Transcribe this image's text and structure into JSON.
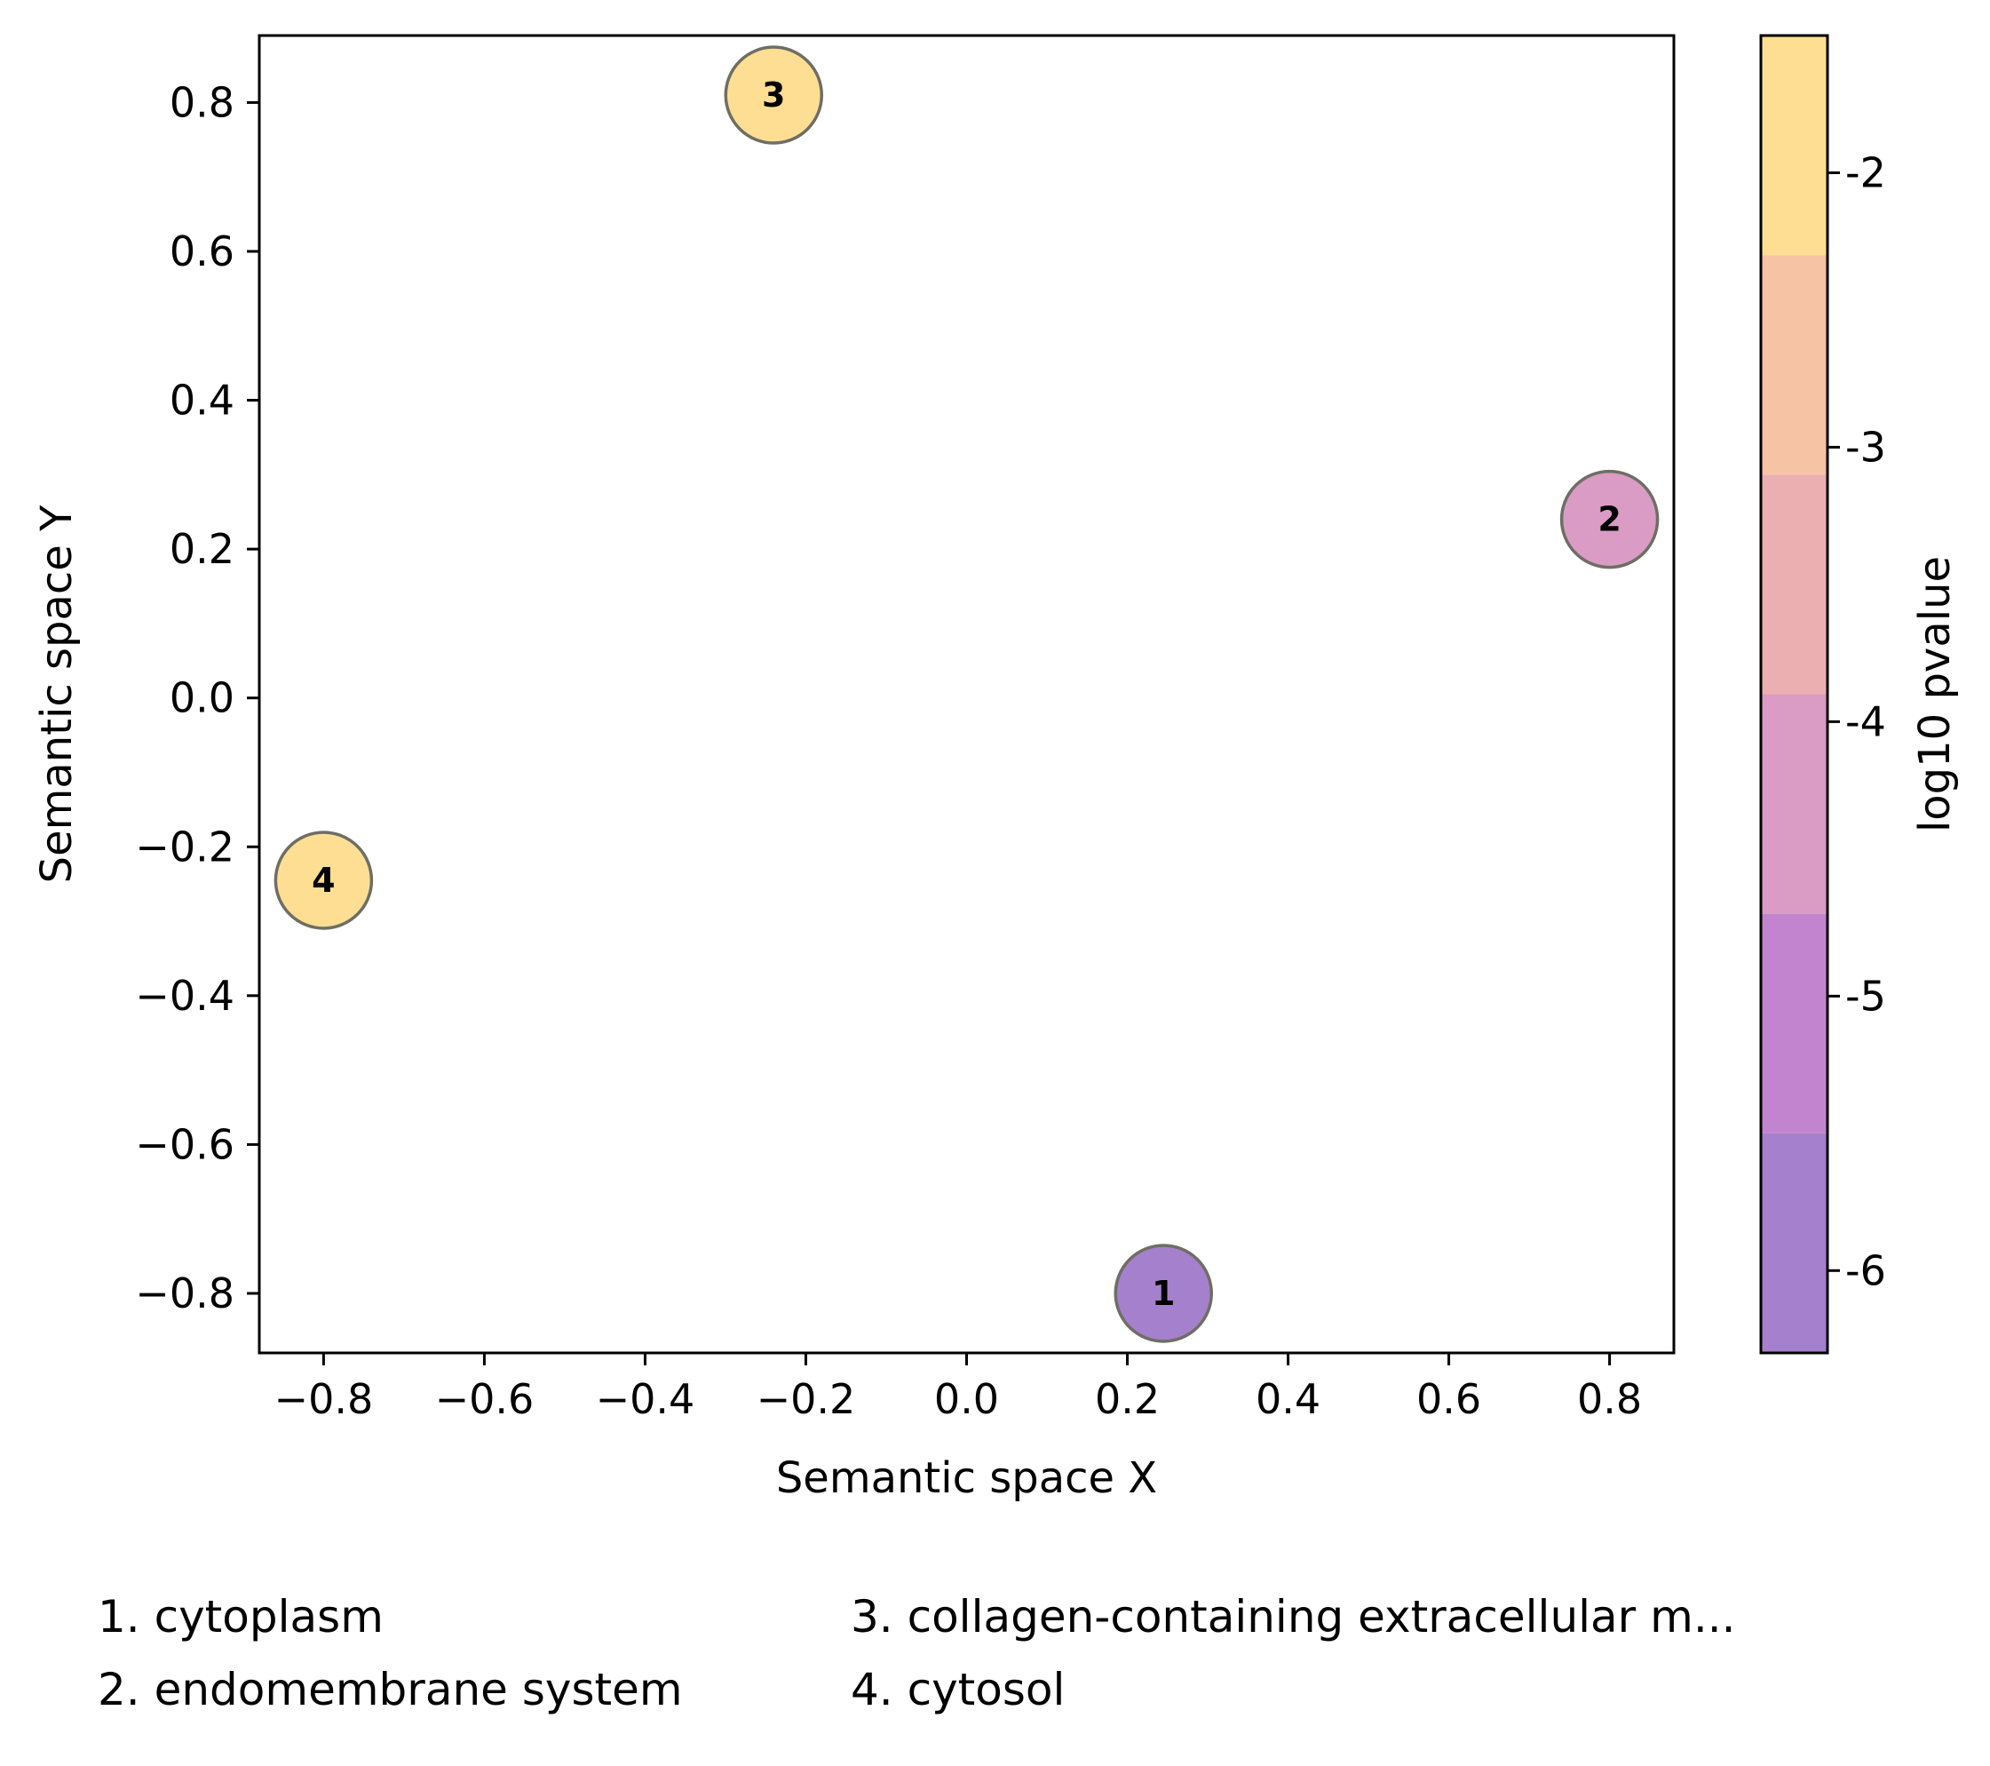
{
  "chart_data": {
    "type": "scatter",
    "xlabel": "Semantic space X",
    "ylabel": "Semantic space Y",
    "xlim": [
      -0.88,
      0.88
    ],
    "ylim": [
      -0.88,
      0.89
    ],
    "xticks": [
      -0.8,
      -0.6,
      -0.4,
      -0.2,
      0.0,
      0.2,
      0.4,
      0.6,
      0.8
    ],
    "xtick_labels": [
      "−0.8",
      "−0.6",
      "−0.4",
      "−0.2",
      "0.0",
      "0.2",
      "0.4",
      "0.6",
      "0.8"
    ],
    "yticks": [
      -0.8,
      -0.6,
      -0.4,
      -0.2,
      0.0,
      0.2,
      0.4,
      0.6,
      0.8
    ],
    "ytick_labels": [
      "−0.8",
      "−0.6",
      "−0.4",
      "−0.2",
      "0.0",
      "0.2",
      "0.4",
      "0.6",
      "0.8"
    ],
    "grid": false,
    "points": [
      {
        "label": "1",
        "x": 0.245,
        "y": -0.8,
        "log10_pvalue": -6.0,
        "color": "#a580cc"
      },
      {
        "label": "2",
        "x": 0.8,
        "y": 0.24,
        "log10_pvalue": -4.0,
        "color": "#da9bc4"
      },
      {
        "label": "3",
        "x": -0.24,
        "y": 0.81,
        "log10_pvalue": -2.0,
        "color": "#fede93"
      },
      {
        "label": "4",
        "x": -0.8,
        "y": -0.245,
        "log10_pvalue": -2.0,
        "color": "#fede93"
      }
    ],
    "colorbar": {
      "label": "log10 pvalue",
      "vmin": -6.3,
      "vmax": -1.5,
      "boundaries": [
        -6.3,
        -5.5,
        -4.7,
        -3.9,
        -3.1,
        -2.3,
        -1.5
      ],
      "colors": [
        "#a580cc",
        "#c384cf",
        "#da9bc4",
        "#ebafb2",
        "#f7c3a5",
        "#fede93"
      ],
      "ticks": [
        -6,
        -5,
        -4,
        -3,
        -2
      ],
      "tick_labels": [
        "-6",
        "-5",
        "-4",
        "-3",
        "-2"
      ]
    },
    "legend": [
      {
        "text": "1. cytoplasm"
      },
      {
        "text": "2. endomembrane system"
      },
      {
        "text": "3. collagen-containing extracellular m..."
      },
      {
        "text": "4. cytosol"
      }
    ]
  }
}
